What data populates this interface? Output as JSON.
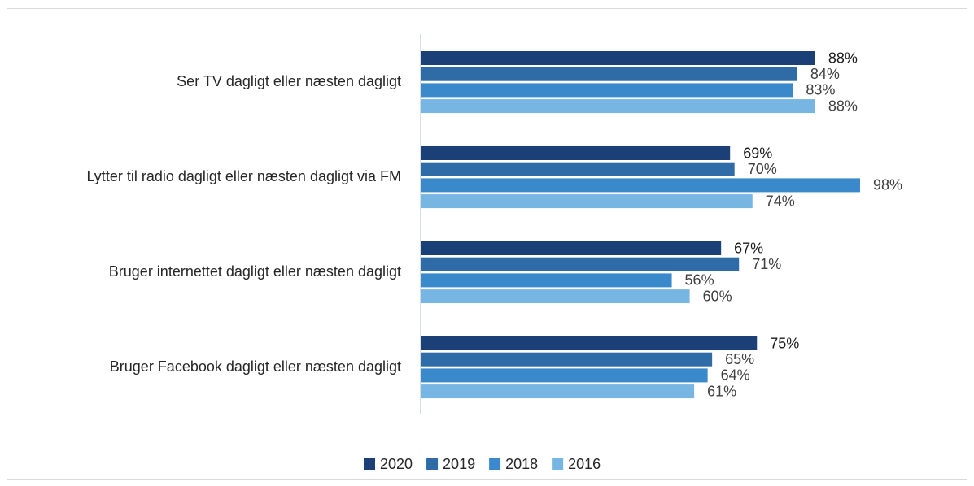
{
  "chart_data": {
    "type": "bar",
    "orientation": "horizontal",
    "categories": [
      "Ser TV dagligt eller næsten dagligt",
      "Lytter til radio dagligt eller næsten dagligt via FM",
      "Bruger internettet dagligt eller næsten dagligt",
      "Bruger Facebook dagligt eller næsten dagligt"
    ],
    "series": [
      {
        "name": "2020",
        "color": "#1b3f77",
        "values": [
          88,
          69,
          67,
          75
        ],
        "value_labels": [
          "88%",
          "69%",
          "67%",
          "75%"
        ]
      },
      {
        "name": "2019",
        "color": "#2f6ba7",
        "values": [
          84,
          70,
          71,
          65
        ],
        "value_labels": [
          "84%",
          "70%",
          "71%",
          "65%"
        ]
      },
      {
        "name": "2018",
        "color": "#3a89cb",
        "values": [
          83,
          98,
          56,
          64
        ],
        "value_labels": [
          "83%",
          "98%",
          "56%",
          "64%"
        ]
      },
      {
        "name": "2016",
        "color": "#77b5e3",
        "values": [
          88,
          74,
          60,
          61
        ],
        "value_labels": [
          "88%",
          "74%",
          "60%",
          "61%"
        ]
      }
    ],
    "xlim": [
      0,
      100
    ],
    "legend": "bottom"
  }
}
